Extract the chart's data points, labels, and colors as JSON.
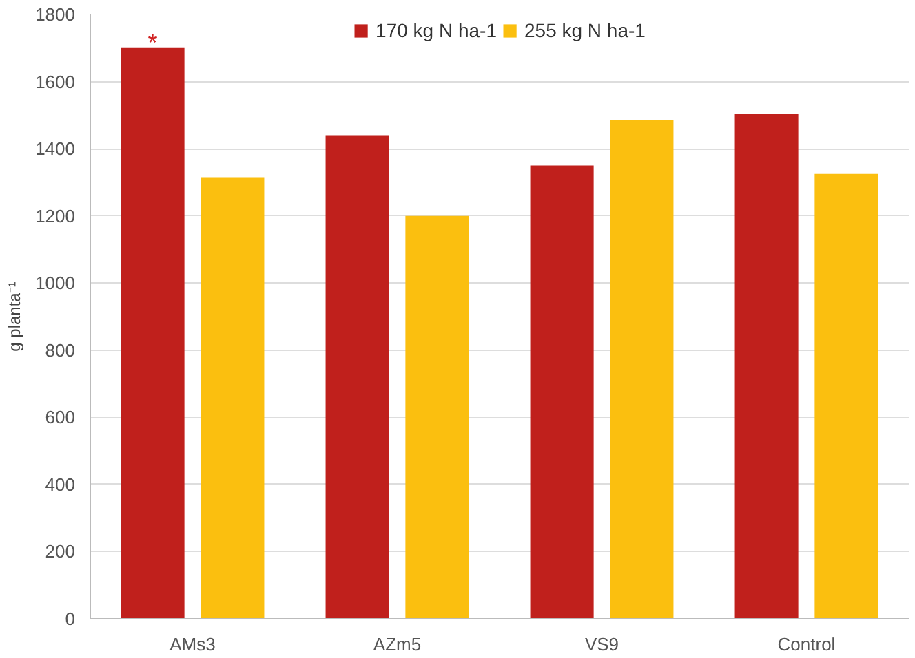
{
  "chart_data": {
    "type": "bar",
    "ylabel": "g planta⁻¹",
    "categories": [
      "AMs3",
      "AZm5",
      "VS9",
      "Control"
    ],
    "series": [
      {
        "name": "170 kg N ha-1",
        "color": "#c0201c",
        "values": [
          1700,
          1440,
          1350,
          1505
        ]
      },
      {
        "name": "255 kg N ha-1",
        "color": "#fbbf0f",
        "values": [
          1315,
          1200,
          1485,
          1325
        ]
      }
    ],
    "ylim": [
      0,
      1800
    ],
    "yticks": [
      0,
      200,
      400,
      600,
      800,
      1000,
      1200,
      1400,
      1600,
      1800
    ],
    "grid": "y",
    "legend": "top",
    "annotations": [
      "*"
    ]
  }
}
